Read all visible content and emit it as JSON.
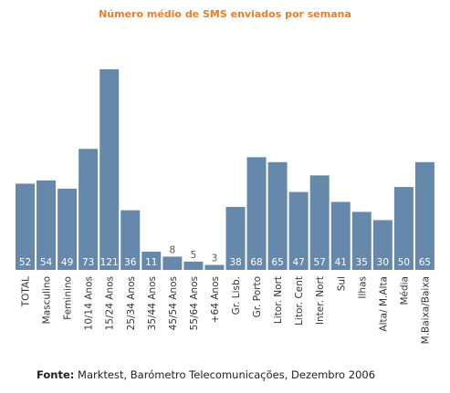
{
  "chart_data": {
    "type": "bar",
    "title": "Número médio de SMS enviados por semana",
    "categories": [
      "TOTAL",
      "Masculino",
      "Feminino",
      "10/14 Anos",
      "15/24 Anos",
      "25/34 Anos",
      "35/44 Anos",
      "45/54 Anos",
      "55/64 Anos",
      "+64 Anos",
      "Gr. Lisb.",
      "Gr. Porto",
      "Litor. Nort",
      "Litor. Cent",
      "Inter. Nort",
      "Sul",
      "Ilhas",
      "Alta/ M.Alta",
      "Média",
      "M.Baixa/Baixa"
    ],
    "values": [
      52,
      54,
      49,
      73,
      121,
      36,
      11,
      8,
      5,
      3,
      38,
      68,
      65,
      47,
      57,
      41,
      35,
      30,
      50,
      65
    ],
    "ylim": [
      0,
      121
    ],
    "grid": false,
    "bar_color": "#6689ab",
    "label_color_inside": "#ffffff",
    "label_color_outside": "#555555"
  },
  "source": {
    "label": "Fonte:",
    "text": " Marktest, Barómetro Telecomunicações, Dezembro 2006"
  }
}
